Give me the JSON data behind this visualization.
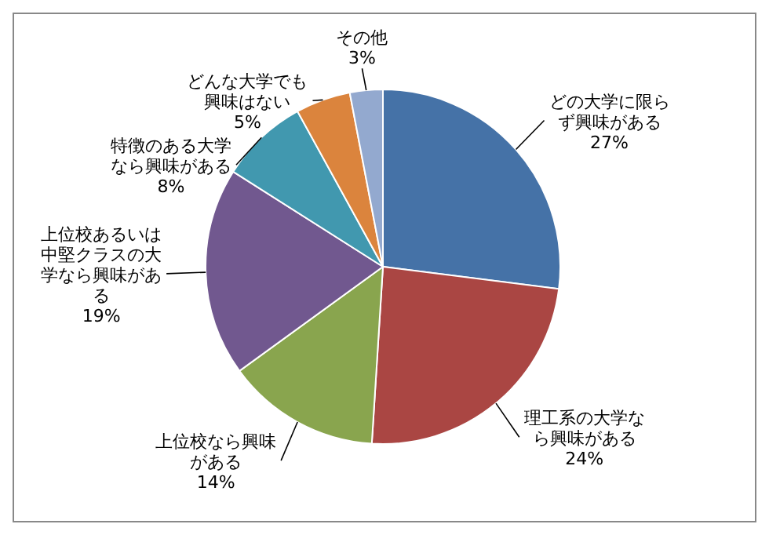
{
  "chart_data": {
    "type": "pie",
    "categories": [
      "どの大学に限らず興味がある",
      "理工系の大学なら興味がある",
      "上位校なら興味がある",
      "上位校あるいは中堅クラスの大学なら興味がある",
      "特徴のある大学なら興味がある",
      "どんな大学でも興味はない",
      "その他"
    ],
    "values": [
      27,
      24,
      14,
      19,
      8,
      5,
      3
    ],
    "value_labels": [
      "27%",
      "24%",
      "14%",
      "19%",
      "8%",
      "5%",
      "3%"
    ],
    "colors": [
      "#4572a7",
      "#aa4643",
      "#89a54e",
      "#71588f",
      "#4198af",
      "#db843d",
      "#93a9cf"
    ]
  }
}
